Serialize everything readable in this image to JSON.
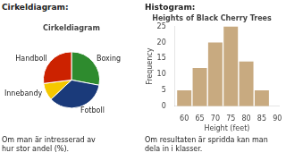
{
  "chart_data": [
    {
      "type": "pie",
      "title": "Cirkeldiagram",
      "categories": [
        "Boxing",
        "Fotboll",
        "Innebandy",
        "Handboll"
      ],
      "values": [
        28,
        35,
        10,
        27
      ],
      "colors": [
        "#2e8b2e",
        "#1a3a7a",
        "#f5c800",
        "#cc2200"
      ],
      "annotations": [
        "Cirkeldiagram:",
        "Om man är intresserad av\nhur stor andel (%)."
      ]
    },
    {
      "type": "bar",
      "title": "Heights of Black Cherry Trees",
      "x": [
        60,
        65,
        70,
        75,
        80,
        85
      ],
      "values": [
        5,
        12,
        20,
        25,
        14,
        5
      ],
      "color": "#c8aa80",
      "xlabel": "Height (feet)",
      "ylabel": "Frequency",
      "xlim": [
        57,
        90.5
      ],
      "xticks": [
        60,
        65,
        70,
        75,
        80,
        85,
        90
      ],
      "ylim": [
        0,
        25
      ],
      "yticks": [
        0,
        5,
        10,
        15,
        20,
        25
      ],
      "grid": false,
      "annotations": [
        "Histogram:",
        "Om resultaten är spridda kan man\ndela in i klasser."
      ]
    }
  ]
}
